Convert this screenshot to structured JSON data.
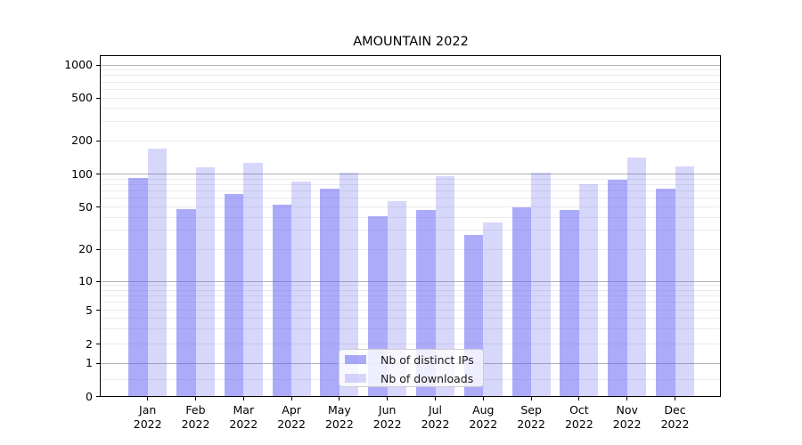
{
  "window": {
    "background": "#ffffff"
  },
  "chart_data": {
    "type": "bar",
    "title": "AMOUNTAIN 2022",
    "categories": [
      "Jan",
      "Feb",
      "Mar",
      "Apr",
      "May",
      "Jun",
      "Jul",
      "Aug",
      "Sep",
      "Oct",
      "Nov",
      "Dec"
    ],
    "year_label": "2022",
    "series": [
      {
        "name": "Nb of distinct IPs",
        "color": "rgba(102,102,245,0.55)",
        "values": [
          92,
          48,
          66,
          52,
          73,
          41,
          47,
          27,
          50,
          47,
          88,
          73
        ]
      },
      {
        "name": "Nb of downloads",
        "color": "rgba(102,102,245,0.26)",
        "values": [
          168,
          115,
          127,
          85,
          103,
          57,
          96,
          36,
          102,
          81,
          140,
          118
        ]
      }
    ],
    "yticks": [
      0,
      1,
      2,
      5,
      10,
      20,
      50,
      100,
      200,
      500,
      1000
    ],
    "scale": "log (linear below 1, zero shown)",
    "ylim": [
      0,
      1300
    ],
    "grid": "major horizontal at decades, minor at 2-9 per decade",
    "legend_position": "lower center, inside plot",
    "xlabel": "",
    "ylabel": ""
  },
  "colors": {
    "bar_distinct_ips": "rgba(102,102,245,0.55)",
    "bar_downloads": "rgba(102,102,245,0.26)",
    "grid_major": "#b0b0b0",
    "grid_minor": "#eaeaea",
    "axis_spine": "#000000",
    "legend_border": "#cccccc",
    "text": "#000000"
  }
}
